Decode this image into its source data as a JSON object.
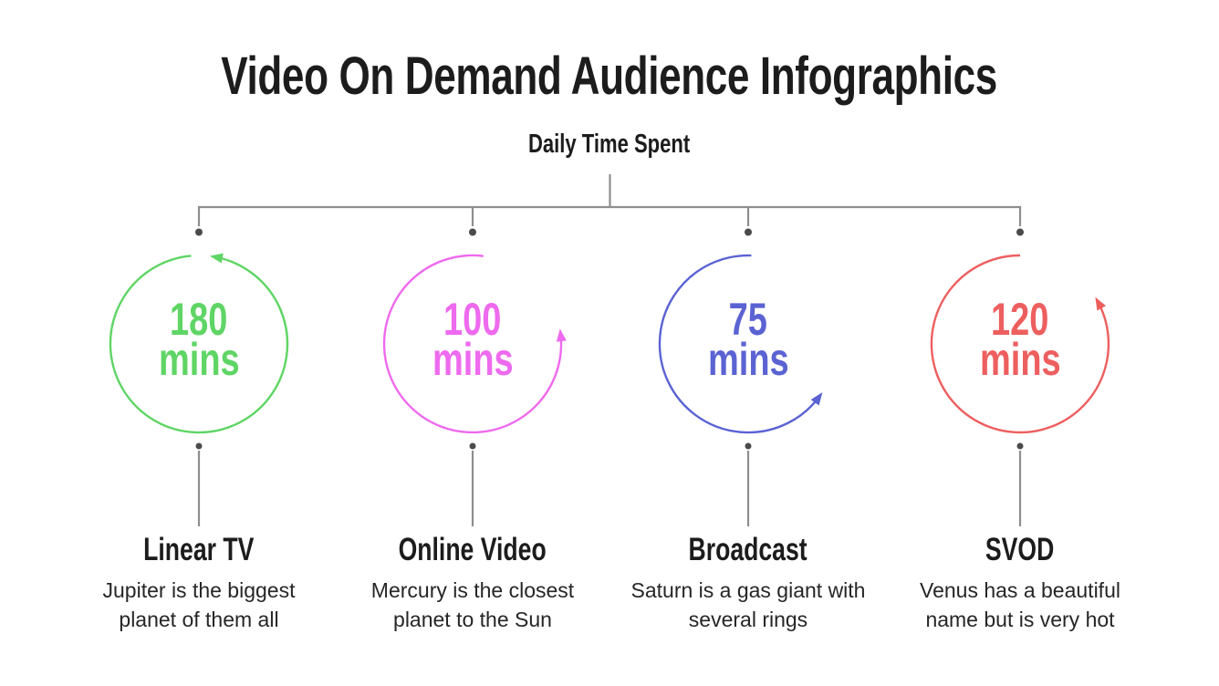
{
  "title": "Video On Demand Audience Infographics",
  "subtitle": "Daily Time Spent",
  "connector": {
    "line_color": "#8e8e8e",
    "dot_color": "#4b4b4b"
  },
  "items": [
    {
      "value": "180",
      "unit": "mins",
      "label": "Linear TV",
      "description": "Jupiter is the biggest planet of them all",
      "color": "#5fd565",
      "arc": {
        "start_deg": 95,
        "sweep_deg": 345
      }
    },
    {
      "value": "100",
      "unit": "mins",
      "label": "Online Video",
      "description": "Mercury is the closest planet to the Sun",
      "color": "#ee6aee",
      "arc": {
        "start_deg": 83,
        "sweep_deg": 284
      }
    },
    {
      "value": "75",
      "unit": "mins",
      "label": "Broadcast",
      "description": "Saturn is a gas giant with several rings",
      "color": "#5b63d3",
      "arc": {
        "start_deg": 88,
        "sweep_deg": 236
      }
    },
    {
      "value": "120",
      "unit": "mins",
      "label": "SVOD",
      "description": "Venus has a beautiful name but is very hot",
      "color": "#ed5f5f",
      "arc": {
        "start_deg": 90,
        "sweep_deg": 299
      }
    }
  ],
  "chart_data": {
    "type": "bar",
    "variant": "radial-arc-gauges",
    "title": "Daily Time Spent",
    "categories": [
      "Linear TV",
      "Online Video",
      "Broadcast",
      "SVOD"
    ],
    "values": [
      180,
      100,
      75,
      120
    ],
    "unit": "mins",
    "series_colors": [
      "#5fd565",
      "#ee6aee",
      "#5b63d3",
      "#ed5f5f"
    ],
    "annotations": [
      "Jupiter is the biggest planet of them all",
      "Mercury is the closest planet to the Sun",
      "Saturn is a gas giant with several rings",
      "Venus has a beautiful name but is very hot"
    ],
    "legend_position": "none",
    "grid": false
  }
}
